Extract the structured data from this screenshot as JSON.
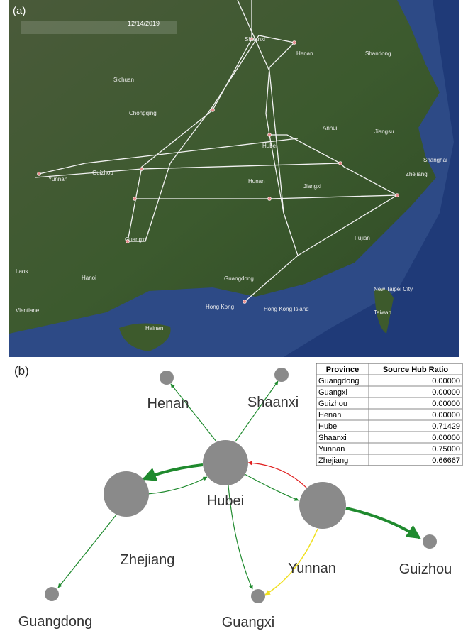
{
  "panel_a": {
    "label": "(a)",
    "date": "12/14/2019",
    "places": [
      "Shaanxi",
      "Henan",
      "Shandong",
      "Sichuan",
      "Chongqing",
      "Hubei",
      "Anhui",
      "Jiangsu",
      "Shanghai",
      "Zhejiang",
      "Yunnan",
      "Guizhou",
      "Hunan",
      "Jiangxi",
      "Guangxi",
      "Fujian",
      "Guangdong",
      "Hong Kong",
      "Hong Kong Island",
      "Laos",
      "Hanoi",
      "Vientiane",
      "Hainan",
      "New Taipei City",
      "Taiwan"
    ]
  },
  "panel_b": {
    "label": "(b)",
    "nodes": [
      "Henan",
      "Shaanxi",
      "Hubei",
      "Zhejiang",
      "Yunnan",
      "Guizhou",
      "Guangdong",
      "Guangxi"
    ],
    "table": {
      "header": [
        "Province",
        "Source Hub Ratio"
      ],
      "rows": [
        [
          "Guangdong",
          "0.00000"
        ],
        [
          "Guangxi",
          "0.00000"
        ],
        [
          "Guizhou",
          "0.00000"
        ],
        [
          "Henan",
          "0.00000"
        ],
        [
          "Hubei",
          "0.71429"
        ],
        [
          "Shaanxi",
          "0.00000"
        ],
        [
          "Yunnan",
          "0.75000"
        ],
        [
          "Zhejiang",
          "0.66667"
        ]
      ]
    }
  }
}
